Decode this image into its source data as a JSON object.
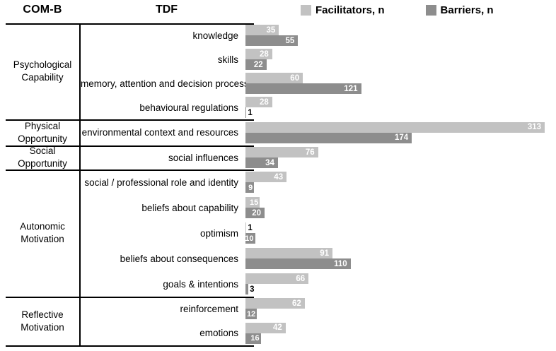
{
  "chart_data": {
    "type": "bar",
    "orientation": "horizontal",
    "col_headers": {
      "comb": "COM-B",
      "tdf": "TDF"
    },
    "legend": [
      {
        "label": "Facilitators, n",
        "color": "#c2c2c2"
      },
      {
        "label": "Barriers, n",
        "color": "#8d8d8d"
      }
    ],
    "xlim": [
      0,
      313
    ],
    "groups": [
      {
        "comb": "Psychological Capability",
        "rows": [
          {
            "tdf": "knowledge",
            "facilitators": 35,
            "barriers": 55
          },
          {
            "tdf": "skills",
            "facilitators": 28,
            "barriers": 22
          },
          {
            "tdf": "memory, attention and decision process",
            "facilitators": 60,
            "barriers": 121
          },
          {
            "tdf": "behavioural regulations",
            "facilitators": 28,
            "barriers": 1
          }
        ]
      },
      {
        "comb": "Physical Opportunity",
        "rows": [
          {
            "tdf": "environmental context and resources",
            "facilitators": 313,
            "barriers": 174
          }
        ]
      },
      {
        "comb": "Social Opportunity",
        "rows": [
          {
            "tdf": "social influences",
            "facilitators": 76,
            "barriers": 34
          }
        ]
      },
      {
        "comb": "Autonomic Motivation",
        "rows": [
          {
            "tdf": "social / professional role and identity",
            "facilitators": 43,
            "barriers": 9
          },
          {
            "tdf": "beliefs about capability",
            "facilitators": 15,
            "barriers": 20
          },
          {
            "tdf": "optimism",
            "facilitators": 1,
            "barriers": 10
          },
          {
            "tdf": "beliefs about consequences",
            "facilitators": 91,
            "barriers": 110
          },
          {
            "tdf": "goals & intentions",
            "facilitators": 66,
            "barriers": 3
          }
        ]
      },
      {
        "comb": "Reflective Motivation",
        "rows": [
          {
            "tdf": "reinforcement",
            "facilitators": 62,
            "barriers": 12
          },
          {
            "tdf": "emotions",
            "facilitators": 42,
            "barriers": 16
          }
        ]
      }
    ]
  }
}
